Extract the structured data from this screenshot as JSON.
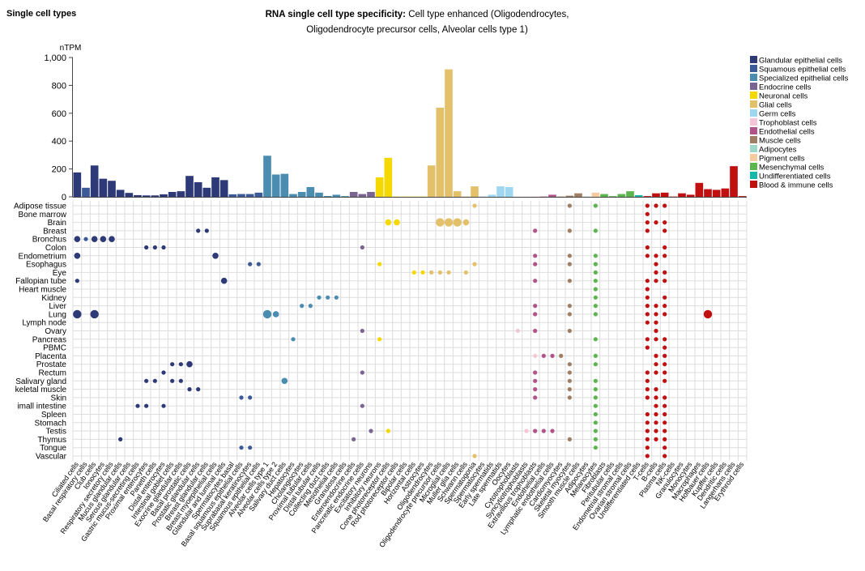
{
  "page": {
    "heading": "Single cell types"
  },
  "chart_data": {
    "type": "bar",
    "title_bold": "RNA single cell type specificity:",
    "title_rest": " Cell type enhanced (Oligodendrocytes,",
    "title_line2": "Oligodendrocyte precursor cells, Alveolar cells type 1)",
    "ylabel": "nTPM",
    "ylim": [
      0,
      1000
    ],
    "yticks": [
      0,
      200,
      400,
      600,
      800,
      1000
    ],
    "ytick_labels": [
      "0",
      "200",
      "400",
      "600",
      "800",
      "1,000"
    ],
    "legend": [
      {
        "name": "Glandular epithelial cells",
        "color": "#2e3a78"
      },
      {
        "name": "Squamous epithelial cells",
        "color": "#3c5a98"
      },
      {
        "name": "Specialized epithelial cells",
        "color": "#4a8db0"
      },
      {
        "name": "Endocrine cells",
        "color": "#7a6492"
      },
      {
        "name": "Neuronal cells",
        "color": "#f5d800"
      },
      {
        "name": "Glial cells",
        "color": "#e3c06a"
      },
      {
        "name": "Germ cells",
        "color": "#9fd6f0"
      },
      {
        "name": "Trophoblast cells",
        "color": "#f4c6d8"
      },
      {
        "name": "Endothelial cells",
        "color": "#b0548a"
      },
      {
        "name": "Muscle cells",
        "color": "#a07e63"
      },
      {
        "name": "Adipocytes",
        "color": "#9ed8ca"
      },
      {
        "name": "Pigment cells",
        "color": "#f7cba0"
      },
      {
        "name": "Mesenchymal cells",
        "color": "#5db54f"
      },
      {
        "name": "Undifferentiated cells",
        "color": "#17b8a8"
      },
      {
        "name": "Blood & immune cells",
        "color": "#c01010"
      }
    ],
    "cell_types": [
      {
        "name": "Ciliated cells",
        "group": 0,
        "value": 175
      },
      {
        "name": "Basal respiratory cells",
        "group": 1,
        "value": 65
      },
      {
        "name": "Club cells",
        "group": 0,
        "value": 225
      },
      {
        "name": "Ionocytes",
        "group": 0,
        "value": 130
      },
      {
        "name": "Respiratory secretory cells",
        "group": 0,
        "value": 115
      },
      {
        "name": "Mucus glandular cells",
        "group": 0,
        "value": 50
      },
      {
        "name": "Serous glandular cells",
        "group": 0,
        "value": 28
      },
      {
        "name": "Gastric mucus-secreting cells",
        "group": 0,
        "value": 12
      },
      {
        "name": "Proximal enterocytes",
        "group": 0,
        "value": 10
      },
      {
        "name": "Paneth cells",
        "group": 0,
        "value": 10
      },
      {
        "name": "Distal enterocytes",
        "group": 0,
        "value": 18
      },
      {
        "name": "Intestinal goblet cells",
        "group": 0,
        "value": 35
      },
      {
        "name": "Exocrine glandular cells",
        "group": 0,
        "value": 40
      },
      {
        "name": "Basal prostatic cells",
        "group": 0,
        "value": 150
      },
      {
        "name": "Prostatic glandular cells",
        "group": 0,
        "value": 105
      },
      {
        "name": "Breast glandular cells",
        "group": 0,
        "value": 65
      },
      {
        "name": "Breast myoepithelial cells",
        "group": 0,
        "value": 140
      },
      {
        "name": "Glandular and luminal cells",
        "group": 0,
        "value": 120
      },
      {
        "name": "Spermatocytes basal",
        "group": 1,
        "value": 18
      },
      {
        "name": "Basal squamous epithelial cells",
        "group": 1,
        "value": 20
      },
      {
        "name": "Suprabasal keratinocytes",
        "group": 1,
        "value": 20
      },
      {
        "name": "Squamous epithelial cells",
        "group": 1,
        "value": 30
      },
      {
        "name": "Alveolar cells type 1",
        "group": 2,
        "value": 295
      },
      {
        "name": "Alveolar cells type 2",
        "group": 2,
        "value": 160
      },
      {
        "name": "Salivary duct cells",
        "group": 2,
        "value": 165
      },
      {
        "name": "Hepatocytes",
        "group": 2,
        "value": 20
      },
      {
        "name": "Cholangiocytes",
        "group": 2,
        "value": 35
      },
      {
        "name": "Proximal tubular cells",
        "group": 2,
        "value": 70
      },
      {
        "name": "Distal tubular cells",
        "group": 2,
        "value": 30
      },
      {
        "name": "Collecting duct cells",
        "group": 2,
        "value": 6
      },
      {
        "name": "Mesothelial cells",
        "group": 2,
        "value": 15
      },
      {
        "name": "Granulosa cells",
        "group": 2,
        "value": 5
      },
      {
        "name": "Enteroendocrine cells",
        "group": 3,
        "value": 35
      },
      {
        "name": "Pancreatic endocrine cells",
        "group": 3,
        "value": 20
      },
      {
        "name": "Excitatory neurons",
        "group": 3,
        "value": 35
      },
      {
        "name": "Inhibitory neurons",
        "group": 4,
        "value": 140
      },
      {
        "name": "Cone photoreceptor cells",
        "group": 4,
        "value": 280
      },
      {
        "name": "Rod photoreceptor cells",
        "group": 4,
        "value": 2
      },
      {
        "name": "Bipolar cells",
        "group": 4,
        "value": 2
      },
      {
        "name": "Horizontal cells",
        "group": 4,
        "value": 2
      },
      {
        "name": "Astrocytes",
        "group": 4,
        "value": 2
      },
      {
        "name": "Oligodendrocytes",
        "group": 5,
        "value": 225
      },
      {
        "name": "Oligodendrocyte precursor cells",
        "group": 5,
        "value": 640
      },
      {
        "name": "Microglial cells",
        "group": 5,
        "value": 915
      },
      {
        "name": "Muller glia cells",
        "group": 5,
        "value": 40
      },
      {
        "name": "Schwann cells",
        "group": 5,
        "value": 2
      },
      {
        "name": "Spermatogonia",
        "group": 5,
        "value": 75
      },
      {
        "name": "Spermatocytes",
        "group": 6,
        "value": 2
      },
      {
        "name": "Early spermatids",
        "group": 6,
        "value": 15
      },
      {
        "name": "Late spermatids",
        "group": 6,
        "value": 75
      },
      {
        "name": "Oocytes",
        "group": 6,
        "value": 70
      },
      {
        "name": "Cytotrophoblasts",
        "group": 7,
        "value": 2
      },
      {
        "name": "Syncytiotrophoblasts",
        "group": 7,
        "value": 2
      },
      {
        "name": "Extravillous trophoblasts",
        "group": 7,
        "value": 2
      },
      {
        "name": "Endothelial cells",
        "group": 8,
        "value": 2
      },
      {
        "name": "Lymphatic endothelial cells",
        "group": 8,
        "value": 15
      },
      {
        "name": "Cardiomyocytes",
        "group": 9,
        "value": 2
      },
      {
        "name": "Skeletal myocytes",
        "group": 9,
        "value": 8
      },
      {
        "name": "Smooth muscle cells",
        "group": 9,
        "value": 25
      },
      {
        "name": "Adipocytes",
        "group": 10,
        "value": 2
      },
      {
        "name": "Melanocytes",
        "group": 11,
        "value": 30
      },
      {
        "name": "Fibroblasts",
        "group": 12,
        "value": 20
      },
      {
        "name": "Peritubular cells",
        "group": 12,
        "value": 5
      },
      {
        "name": "Endometrial stromal cells",
        "group": 12,
        "value": 20
      },
      {
        "name": "Ovarian stromal cells",
        "group": 12,
        "value": 40
      },
      {
        "name": "Undifferentiated cells",
        "group": 13,
        "value": 12
      },
      {
        "name": "T-cells",
        "group": 14,
        "value": 5
      },
      {
        "name": "B-cells",
        "group": 14,
        "value": 25
      },
      {
        "name": "Plasma cells",
        "group": 14,
        "value": 30
      },
      {
        "name": "NK-cells",
        "group": 14,
        "value": 2
      },
      {
        "name": "Granulocytes",
        "group": 14,
        "value": 25
      },
      {
        "name": "Monocytes",
        "group": 14,
        "value": 15
      },
      {
        "name": "Macrophages",
        "group": 14,
        "value": 100
      },
      {
        "name": "Hofbauer cells",
        "group": 14,
        "value": 55
      },
      {
        "name": "Kupffer cells",
        "group": 14,
        "value": 50
      },
      {
        "name": "Dendritic cells",
        "group": 14,
        "value": 60
      },
      {
        "name": "Langerhans cells",
        "group": 14,
        "value": 220
      },
      {
        "name": "Erythroid cells",
        "group": 14,
        "value": 5
      }
    ],
    "tissues": [
      "Adipose tissue",
      "Bone marrow",
      "Brain",
      "Breast",
      "Bronchus",
      "Colon",
      "Endometrium",
      "Esophagus",
      "Eye",
      "Fallopian tube",
      "Heart muscle",
      "Kidney",
      "Liver",
      "Lung",
      "Lymph node",
      "Ovary",
      "Pancreas",
      "PBMC",
      "Placenta",
      "Prostate",
      "Rectum",
      "Salivary gland",
      "keletal muscle",
      "Skin",
      "imall intestine",
      "Spleen",
      "Stomach",
      "Testis",
      "Thymus",
      "Tongue",
      "Vascular"
    ],
    "dots": [
      [
        4,
        0,
        2
      ],
      [
        4,
        1,
        1
      ],
      [
        4,
        2,
        2
      ],
      [
        4,
        3,
        2
      ],
      [
        4,
        4,
        2
      ],
      [
        6,
        0,
        2
      ],
      [
        13,
        0,
        3
      ],
      [
        13,
        2,
        3
      ],
      [
        9,
        0,
        1
      ],
      [
        5,
        8,
        1
      ],
      [
        5,
        9,
        1
      ],
      [
        5,
        10,
        1
      ],
      [
        20,
        10,
        1
      ],
      [
        21,
        8,
        1
      ],
      [
        21,
        9,
        1
      ],
      [
        3,
        14,
        1
      ],
      [
        3,
        15,
        1
      ],
      [
        6,
        16,
        2
      ],
      [
        9,
        17,
        2
      ],
      [
        19,
        13,
        2
      ],
      [
        7,
        20,
        1
      ],
      [
        7,
        21,
        1
      ],
      [
        23,
        19,
        1
      ],
      [
        23,
        20,
        1
      ],
      [
        29,
        19,
        1
      ],
      [
        29,
        20,
        1
      ],
      [
        24,
        7,
        1
      ],
      [
        24,
        8,
        1
      ],
      [
        24,
        10,
        1
      ],
      [
        28,
        5,
        1
      ],
      [
        19,
        11,
        1
      ],
      [
        19,
        12,
        1
      ],
      [
        21,
        11,
        1
      ],
      [
        21,
        12,
        1
      ],
      [
        22,
        13,
        1
      ],
      [
        22,
        14,
        1
      ],
      [
        13,
        22,
        3
      ],
      [
        13,
        23,
        2
      ],
      [
        21,
        24,
        2
      ],
      [
        16,
        25,
        1
      ],
      [
        12,
        26,
        1
      ],
      [
        12,
        27,
        1
      ],
      [
        11,
        28,
        1
      ],
      [
        11,
        29,
        1
      ],
      [
        11,
        30,
        1
      ],
      [
        15,
        33,
        1
      ],
      [
        27,
        34,
        1
      ],
      [
        16,
        35,
        1
      ],
      [
        28,
        32,
        1
      ],
      [
        5,
        33,
        1
      ],
      [
        24,
        33,
        1
      ],
      [
        20,
        33,
        1
      ],
      [
        7,
        35,
        1
      ],
      [
        27,
        36,
        1
      ],
      [
        2,
        36,
        2
      ],
      [
        2,
        37,
        2
      ],
      [
        8,
        39,
        1
      ],
      [
        8,
        40,
        1
      ],
      [
        8,
        41,
        1
      ],
      [
        8,
        42,
        1
      ],
      [
        8,
        43,
        1
      ],
      [
        2,
        42,
        3
      ],
      [
        2,
        43,
        3
      ],
      [
        2,
        44,
        3
      ],
      [
        2,
        45,
        2
      ],
      [
        0,
        46,
        1
      ],
      [
        7,
        46,
        1
      ],
      [
        8,
        45,
        1
      ],
      [
        30,
        46,
        1
      ],
      [
        15,
        51,
        1
      ],
      [
        27,
        52,
        1
      ],
      [
        27,
        53,
        1
      ],
      [
        27,
        54,
        1
      ],
      [
        27,
        55,
        1
      ],
      [
        18,
        53,
        1
      ],
      [
        18,
        54,
        1
      ],
      [
        18,
        55,
        1
      ],
      [
        18,
        56,
        1
      ]
    ],
    "endo_rows": [
      3,
      6,
      7,
      9,
      12,
      13,
      15,
      20,
      21,
      22,
      23,
      27
    ],
    "muscle_rows": [
      0,
      3,
      6,
      7,
      9,
      12,
      13,
      15,
      19,
      20,
      21,
      22,
      23,
      28
    ],
    "mesen_rows": [
      0,
      3,
      6,
      7,
      8,
      9,
      10,
      11,
      12,
      13,
      16,
      18,
      19,
      21,
      22,
      23,
      24,
      25,
      26,
      27,
      28,
      29
    ],
    "blood": [
      [
        0,
        66
      ],
      [
        1,
        66
      ],
      [
        2,
        66
      ],
      [
        3,
        66
      ],
      [
        5,
        66
      ],
      [
        6,
        66
      ],
      [
        9,
        66
      ],
      [
        10,
        66
      ],
      [
        11,
        66
      ],
      [
        12,
        66
      ],
      [
        13,
        66
      ],
      [
        14,
        66
      ],
      [
        16,
        66
      ],
      [
        17,
        66
      ],
      [
        20,
        66
      ],
      [
        21,
        66
      ],
      [
        22,
        66
      ],
      [
        23,
        66
      ],
      [
        25,
        66
      ],
      [
        26,
        66
      ],
      [
        27,
        66
      ],
      [
        28,
        66
      ],
      [
        29,
        66
      ],
      [
        30,
        66
      ],
      [
        0,
        67
      ],
      [
        2,
        67
      ],
      [
        6,
        67
      ],
      [
        7,
        67
      ],
      [
        8,
        67
      ],
      [
        9,
        67
      ],
      [
        12,
        67
      ],
      [
        13,
        67
      ],
      [
        14,
        67
      ],
      [
        15,
        67
      ],
      [
        16,
        67
      ],
      [
        18,
        67
      ],
      [
        19,
        67
      ],
      [
        20,
        67
      ],
      [
        22,
        67
      ],
      [
        23,
        67
      ],
      [
        24,
        67
      ],
      [
        25,
        67
      ],
      [
        26,
        67
      ],
      [
        27,
        67
      ],
      [
        28,
        67
      ],
      [
        0,
        68
      ],
      [
        2,
        68
      ],
      [
        3,
        68
      ],
      [
        5,
        68
      ],
      [
        6,
        68
      ],
      [
        8,
        68
      ],
      [
        9,
        68
      ],
      [
        11,
        68
      ],
      [
        12,
        68
      ],
      [
        13,
        68
      ],
      [
        16,
        68
      ],
      [
        17,
        68
      ],
      [
        18,
        68
      ],
      [
        19,
        68
      ],
      [
        20,
        68
      ],
      [
        21,
        68
      ],
      [
        23,
        68
      ],
      [
        24,
        68
      ],
      [
        25,
        68
      ],
      [
        26,
        68
      ],
      [
        27,
        68
      ],
      [
        28,
        68
      ],
      [
        29,
        68
      ],
      [
        30,
        68
      ]
    ]
  }
}
